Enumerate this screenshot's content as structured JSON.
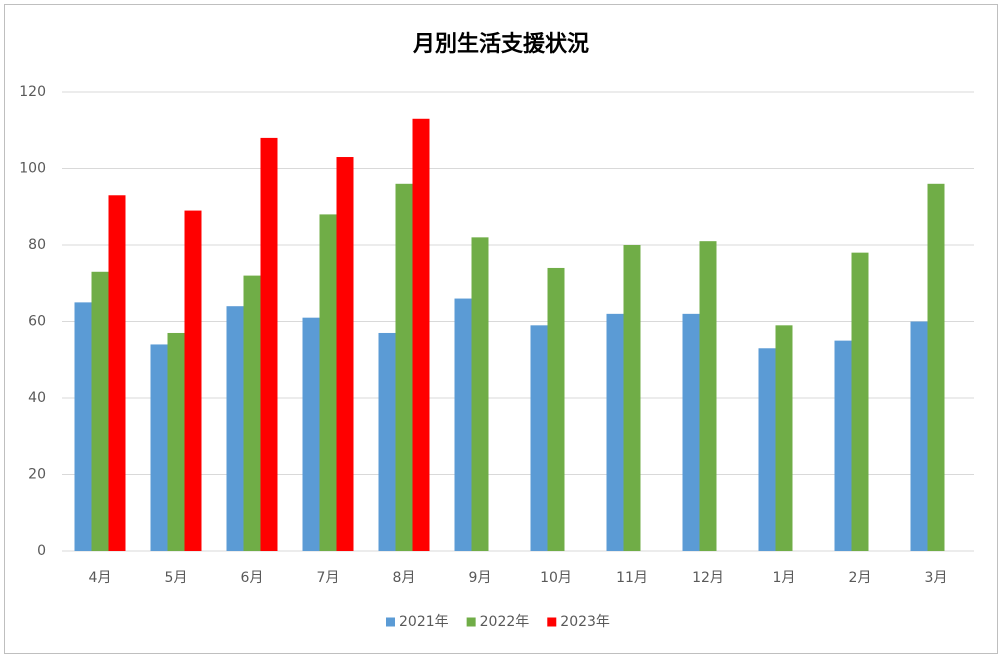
{
  "chart_data": {
    "type": "bar",
    "title": "月別生活支援状況",
    "categories": [
      "4月",
      "5月",
      "6月",
      "7月",
      "8月",
      "9月",
      "10月",
      "11月",
      "12月",
      "1月",
      "2月",
      "3月"
    ],
    "series": [
      {
        "name": "2021年",
        "color": "#5b9bd5",
        "values": [
          65,
          54,
          64,
          61,
          57,
          66,
          59,
          62,
          62,
          53,
          55,
          60
        ]
      },
      {
        "name": "2022年",
        "color": "#70ad47",
        "values": [
          73,
          57,
          72,
          88,
          96,
          82,
          74,
          80,
          81,
          59,
          78,
          96
        ]
      },
      {
        "name": "2023年",
        "color": "#ff0000",
        "values": [
          93,
          89,
          108,
          103,
          113,
          null,
          null,
          null,
          null,
          null,
          null,
          null
        ]
      }
    ],
    "ylim": [
      0,
      120
    ],
    "yticks": [
      0,
      20,
      40,
      60,
      80,
      100,
      120
    ],
    "grid": true,
    "legend": "bottom"
  }
}
